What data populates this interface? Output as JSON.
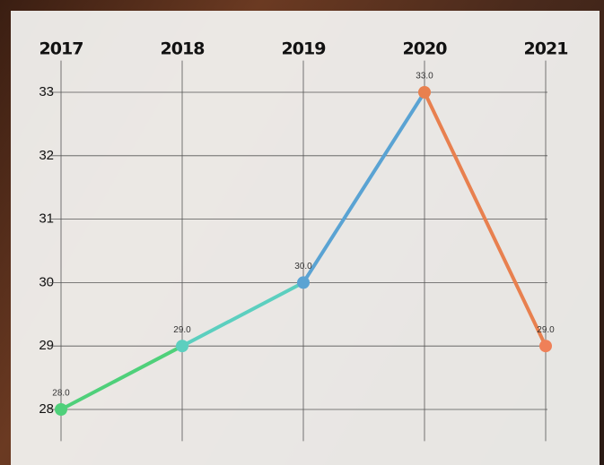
{
  "chart_data": {
    "type": "line",
    "categories": [
      "2017",
      "2018",
      "2019",
      "2020",
      "2021"
    ],
    "values": [
      28,
      29,
      30,
      33,
      29
    ],
    "value_labels": [
      "28.0",
      "29.0",
      "30.0",
      "33.0",
      "29.0"
    ],
    "colors": [
      "#4fd07a",
      "#5ccfbf",
      "#5aa3d3",
      "#e8804f",
      "#ef8058"
    ],
    "ylim": [
      27.5,
      33.5
    ],
    "yticks": [
      28,
      29,
      30,
      31,
      32,
      33
    ],
    "grid": true
  }
}
